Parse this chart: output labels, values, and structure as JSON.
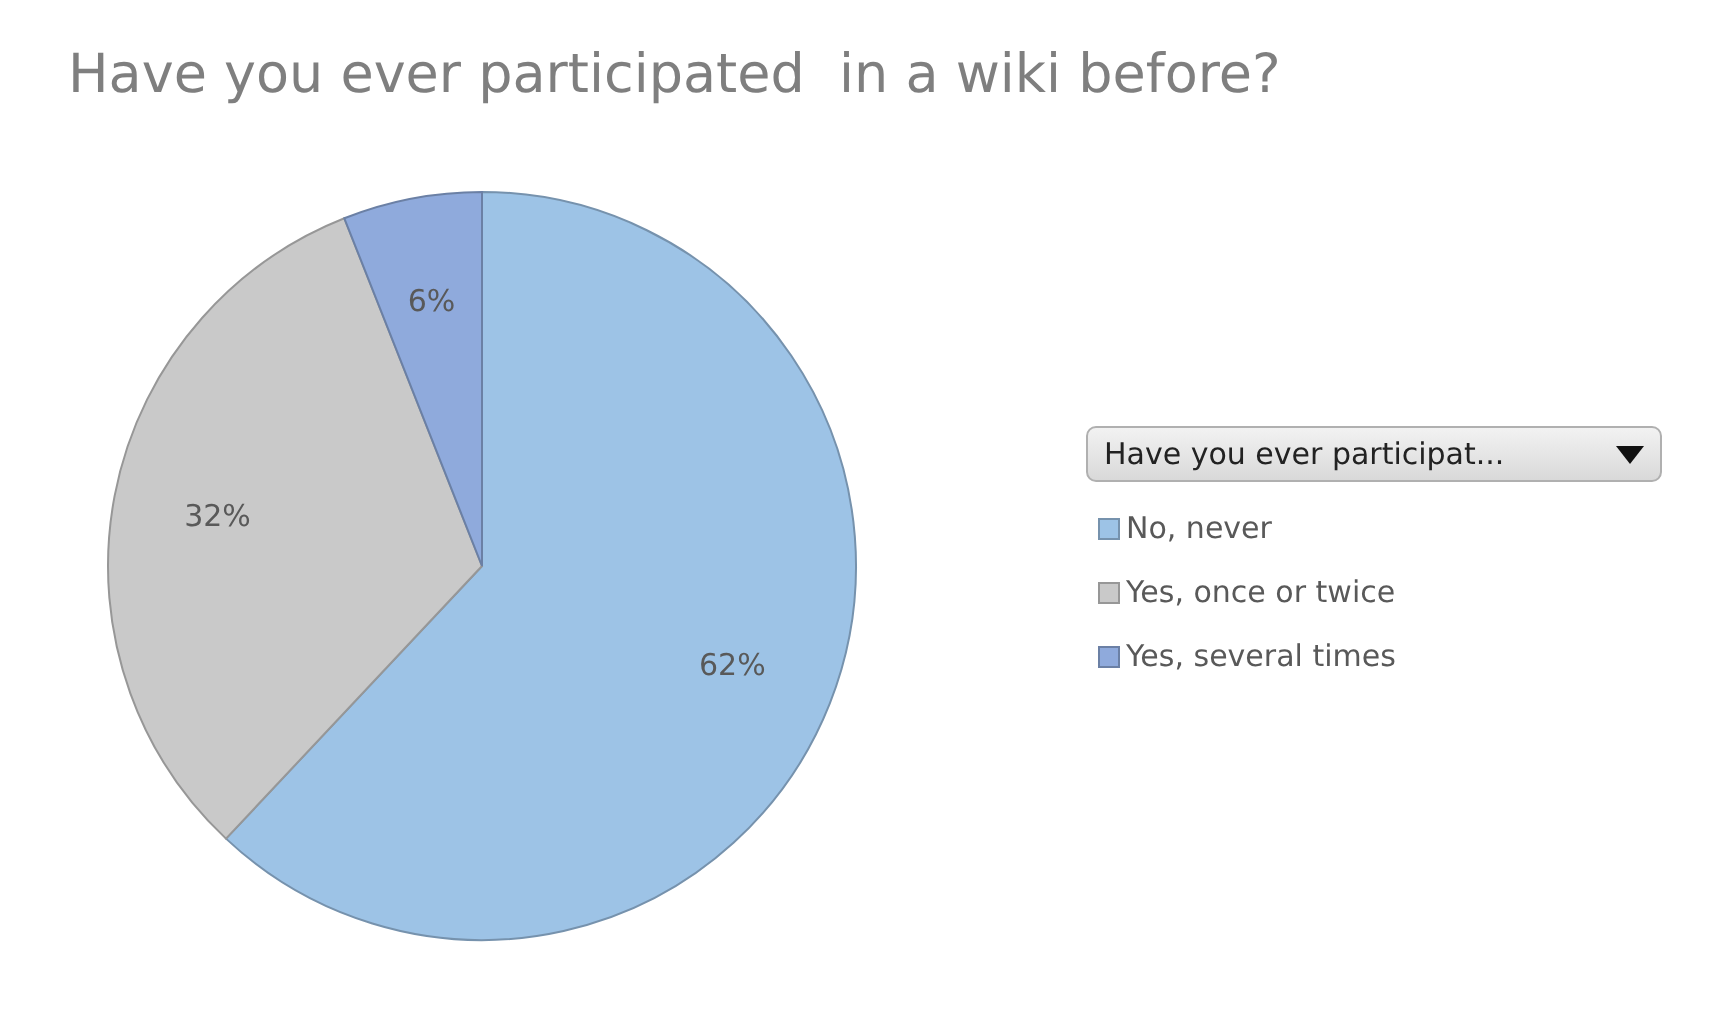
{
  "chart_data": {
    "type": "pie",
    "title": "Have you ever participated  in a wiki before?",
    "legend_title": "Have you ever participat...",
    "categories": [
      "No, never",
      "Yes, once or twice",
      "Yes, several times"
    ],
    "values": [
      62,
      32,
      6
    ],
    "value_labels": [
      "62%",
      "32%",
      "6%"
    ],
    "colors": [
      "#9dc3e6",
      "#c9c9c9",
      "#8faadc"
    ],
    "legend": "right"
  }
}
